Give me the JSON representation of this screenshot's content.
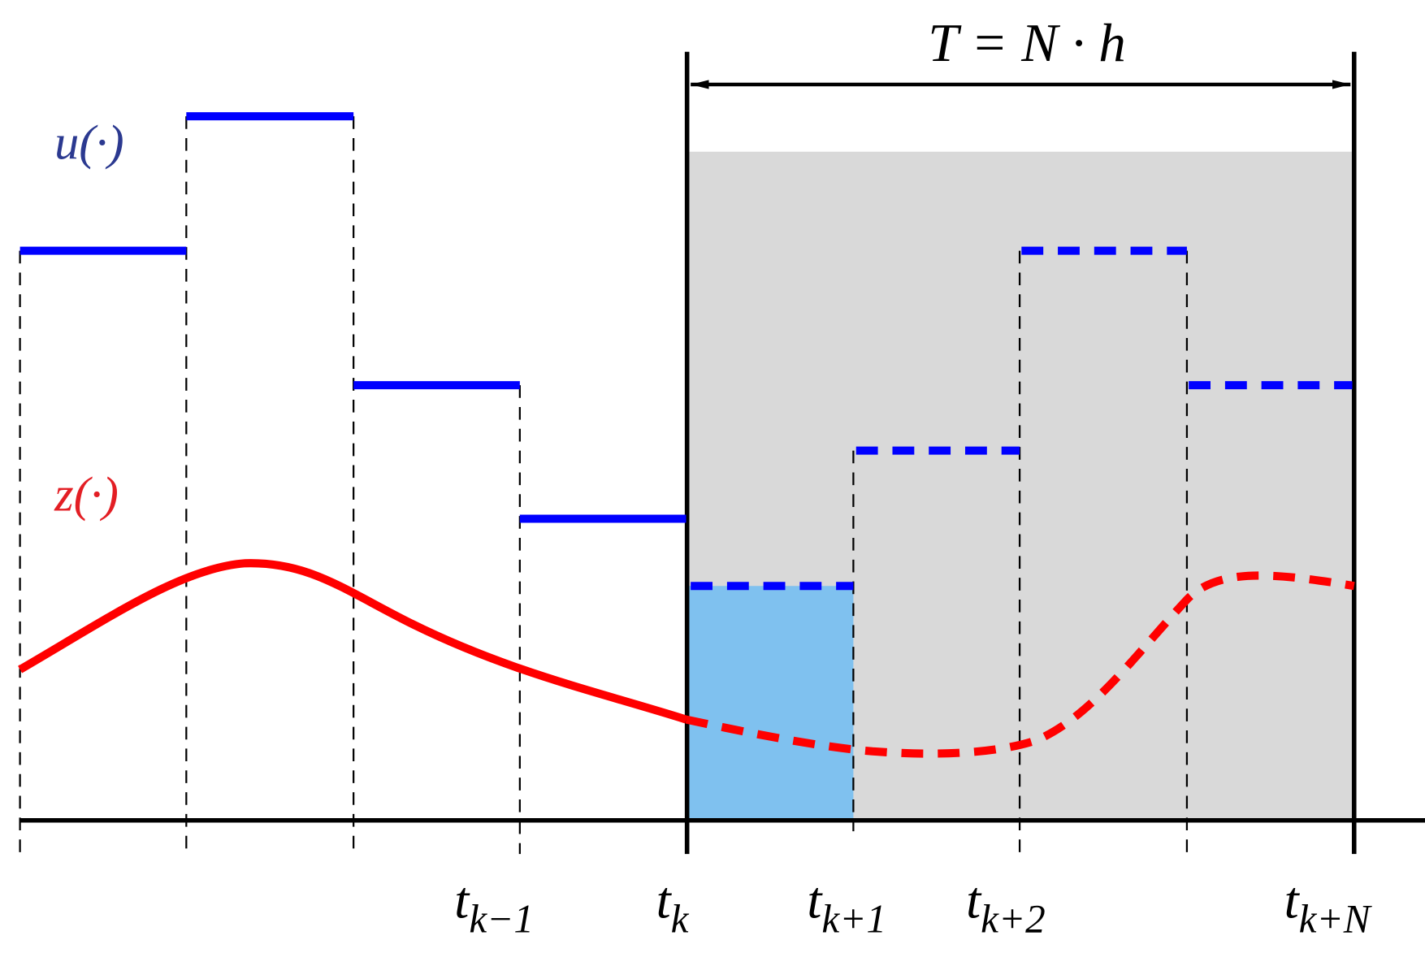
{
  "horizon_label": "T = N · h",
  "input_label": "u(·)",
  "state_label": "z(·)",
  "time_labels": [
    {
      "base": "t",
      "sub": "k−1"
    },
    {
      "base": "t",
      "sub": "k"
    },
    {
      "base": "t",
      "sub": "k+1"
    },
    {
      "base": "t",
      "sub": "k+2"
    },
    {
      "base": "t",
      "sub": "k+N"
    }
  ]
}
